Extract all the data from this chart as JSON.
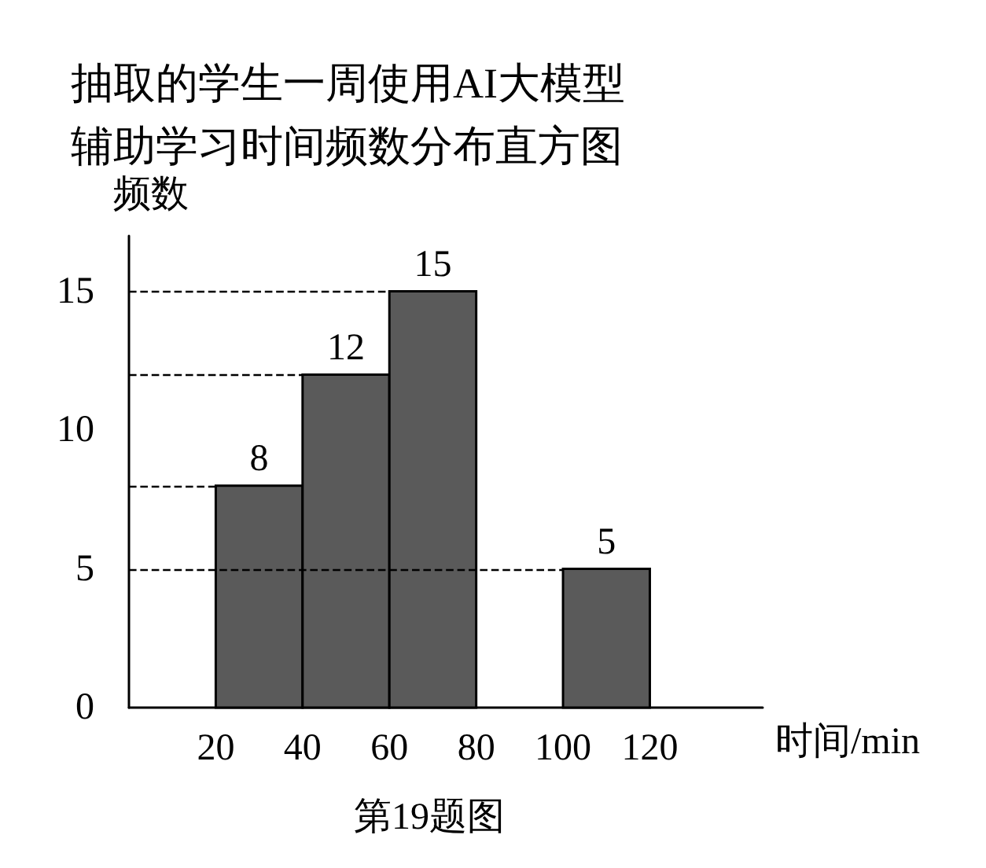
{
  "chart_data": {
    "type": "histogram",
    "title": "抽取的学生一周使用AI大模型辅助学习时间频数分布直方图",
    "ylabel": "频数",
    "xlabel": "时间/min",
    "annotations": [
      "第19题图"
    ],
    "bins": [
      20,
      40,
      60,
      80,
      100,
      120
    ],
    "values": [
      8,
      12,
      15,
      null,
      5
    ],
    "color": "#5a5a5a",
    "data_labels": true,
    "xlim": [
      0,
      146
    ],
    "xticks": [
      20,
      40,
      60,
      80,
      100,
      120
    ],
    "ylim": [
      0,
      17
    ],
    "yticks": [
      0,
      5,
      10,
      15
    ],
    "ref_lines": [
      {
        "axis": "y",
        "value": 5,
        "color": "#000000",
        "line_style": "dashed"
      },
      {
        "axis": "y",
        "value": 8,
        "color": "#000000",
        "line_style": "dashed"
      },
      {
        "axis": "y",
        "value": 12,
        "color": "#000000",
        "line_style": "dashed"
      },
      {
        "axis": "y",
        "value": 15,
        "color": "#000000",
        "line_style": "dashed"
      }
    ],
    "grid": false
  }
}
